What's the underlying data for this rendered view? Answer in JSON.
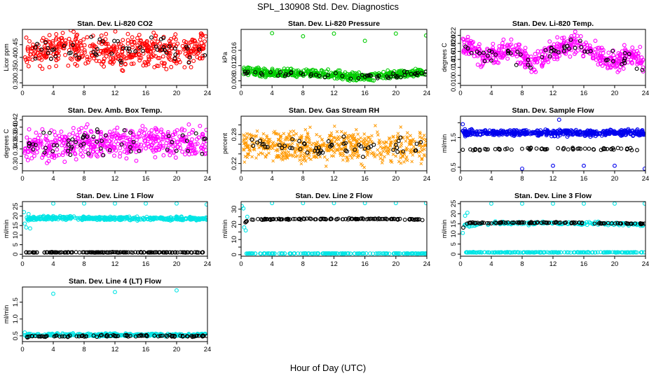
{
  "figure": {
    "title": "SPL_130908  Std. Dev. Diagnostics",
    "xlabel": "Hour of Day (UTC)"
  },
  "chart_data": [
    {
      "type": "scatter",
      "title": "Stan. Dev. Li-820 CO2",
      "ylabel": "Licor ppm",
      "xlim": [
        0,
        24
      ],
      "ylim": [
        0.29,
        0.51
      ],
      "xticks": [
        0,
        4,
        8,
        12,
        16,
        20,
        24
      ],
      "yticks": [
        0.3,
        0.35,
        0.4,
        0.45
      ],
      "ytick_labels": [
        "0.30",
        "0.35",
        "0.40",
        "0.45"
      ],
      "series": [
        {
          "color": "#ff0000",
          "marker": "open-circle",
          "density": 480,
          "x": [
            0.3,
            2.0,
            4.1,
            6.0,
            8.0,
            10.0,
            12.0,
            14.0,
            16.0,
            18.0,
            20.0,
            22.0,
            23.9
          ],
          "y": [
            0.43,
            0.42,
            0.43,
            0.44,
            0.42,
            0.43,
            0.43,
            0.42,
            0.43,
            0.43,
            0.42,
            0.43,
            0.44
          ],
          "spread": 0.045
        },
        {
          "color": "#000000",
          "marker": "open-circle",
          "density": 55,
          "x": [
            0.3,
            4.0,
            8.0,
            12.0,
            16.0,
            20.0,
            23.9
          ],
          "y": [
            0.43,
            0.43,
            0.43,
            0.43,
            0.43,
            0.43,
            0.43
          ],
          "spread": 0.035
        }
      ]
    },
    {
      "type": "scatter",
      "title": "Stan. Dev. Li-820 Pressure",
      "ylabel": "kPa",
      "xlim": [
        0,
        24
      ],
      "ylim": [
        0.0068,
        0.0215
      ],
      "xticks": [
        0,
        4,
        8,
        12,
        16,
        20,
        24
      ],
      "yticks": [
        0.008,
        0.012,
        0.016
      ],
      "ytick_labels": [
        "0.008",
        "0.012",
        "0.016"
      ],
      "series": [
        {
          "color": "#00cc00",
          "marker": "open-circle",
          "density": 480,
          "x": [
            0.3,
            2.0,
            4.0,
            6.0,
            8.0,
            10.0,
            12.0,
            14.0,
            16.0,
            18.0,
            20.0,
            22.0,
            23.9
          ],
          "y": [
            0.0107,
            0.0103,
            0.01,
            0.01,
            0.01,
            0.0098,
            0.0095,
            0.009,
            0.009,
            0.0093,
            0.0097,
            0.01,
            0.0102
          ],
          "spread": 0.0008
        },
        {
          "color": "#000000",
          "marker": "open-circle",
          "density": 55,
          "x": [
            0.3,
            4.0,
            8.0,
            12.0,
            16.0,
            20.0,
            23.9
          ],
          "y": [
            0.0102,
            0.0099,
            0.0099,
            0.0094,
            0.009,
            0.0096,
            0.0101
          ],
          "spread": 0.0006
        },
        {
          "color": "#00cc00",
          "marker": "open-circle",
          "density": 0,
          "points": [
            [
              4.0,
              0.0205
            ],
            [
              8.0,
              0.0197
            ],
            [
              12.0,
              0.0204
            ],
            [
              16.0,
              0.0185
            ],
            [
              20.0,
              0.0204
            ],
            [
              23.9,
              0.0199
            ]
          ]
        }
      ]
    },
    {
      "type": "scatter",
      "title": "Stan. Dev. Li-820 Temp.",
      "ylabel": "degrees C",
      "xlim": [
        0,
        24
      ],
      "ylim": [
        0.0095,
        0.0235
      ],
      "xticks": [
        0,
        4,
        8,
        12,
        16,
        20,
        24
      ],
      "yticks": [
        0.01,
        0.012,
        0.014,
        0.016,
        0.018,
        0.02,
        0.022
      ],
      "ytick_labels": [
        "0.010",
        "",
        "0.014",
        "0.016",
        "0.018",
        "0.020",
        "0.022"
      ],
      "series": [
        {
          "color": "#ff00ff",
          "marker": "open-circle",
          "density": 480,
          "x": [
            0.3,
            1.5,
            3.0,
            4.5,
            6.0,
            7.5,
            9.0,
            10.5,
            12.0,
            13.5,
            15.0,
            16.5,
            18.0,
            19.5,
            21.0,
            22.5,
            23.9
          ],
          "y": [
            0.0195,
            0.0188,
            0.0165,
            0.017,
            0.0185,
            0.018,
            0.0145,
            0.0155,
            0.018,
            0.0195,
            0.0198,
            0.0185,
            0.017,
            0.016,
            0.0165,
            0.017,
            0.015
          ],
          "spread": 0.002
        },
        {
          "color": "#000000",
          "marker": "open-circle",
          "density": 55,
          "x": [
            0.3,
            3.0,
            6.0,
            9.0,
            12.0,
            15.0,
            18.0,
            21.0,
            23.9
          ],
          "y": [
            0.019,
            0.0165,
            0.018,
            0.015,
            0.018,
            0.0195,
            0.017,
            0.0165,
            0.0145
          ],
          "spread": 0.0015
        }
      ]
    },
    {
      "type": "scatter",
      "title": "Stan. Dev. Amb. Box Temp.",
      "ylabel": "degrees C",
      "xlim": [
        0,
        24
      ],
      "ylim": [
        0.28,
        0.43
      ],
      "xticks": [
        0,
        4,
        8,
        12,
        16,
        20,
        24
      ],
      "yticks": [
        0.3,
        0.32,
        0.34,
        0.36,
        0.38,
        0.4,
        0.42
      ],
      "ytick_labels": [
        "0.30",
        "",
        "0.34",
        "0.36",
        "0.38",
        "0.40",
        "0.42"
      ],
      "series": [
        {
          "color": "#ff00ff",
          "marker": "open-circle",
          "density": 480,
          "x": [
            0.3,
            4.0,
            8.0,
            12.0,
            16.0,
            20.0,
            23.9
          ],
          "y": [
            0.345,
            0.35,
            0.355,
            0.36,
            0.36,
            0.36,
            0.355
          ],
          "spread": 0.03
        },
        {
          "color": "#000000",
          "marker": "open-circle",
          "density": 55,
          "x": [
            0.3,
            4.0,
            8.0,
            12.0,
            16.0,
            20.0,
            23.9
          ],
          "y": [
            0.345,
            0.355,
            0.355,
            0.36,
            0.365,
            0.365,
            0.355
          ],
          "spread": 0.025
        }
      ]
    },
    {
      "type": "scatter",
      "title": "Stan. Dev. Gas Stream RH",
      "ylabel": "percent",
      "xlim": [
        0,
        24
      ],
      "ylim": [
        0.205,
        0.318
      ],
      "xticks": [
        0,
        4,
        8,
        12,
        16,
        20,
        24
      ],
      "yticks": [
        0.22,
        0.24,
        0.26,
        0.28,
        0.3
      ],
      "ytick_labels": [
        "0.22",
        "",
        "",
        "0.28",
        ""
      ],
      "series": [
        {
          "color": "#ff9900",
          "marker": "cross",
          "density": 600,
          "x": [
            0.3,
            4.0,
            8.0,
            12.0,
            16.0,
            20.0,
            23.9
          ],
          "y": [
            0.255,
            0.255,
            0.255,
            0.255,
            0.255,
            0.255,
            0.255
          ],
          "spread": 0.025
        },
        {
          "color": "#000000",
          "marker": "open-circle",
          "density": 55,
          "x": [
            0.3,
            4.0,
            8.0,
            12.0,
            16.0,
            20.0,
            23.9
          ],
          "y": [
            0.255,
            0.258,
            0.256,
            0.252,
            0.255,
            0.258,
            0.255
          ],
          "spread": 0.015
        }
      ]
    },
    {
      "type": "scatter",
      "title": "Stan. Dev. Sample Flow",
      "ylabel": "ml/min",
      "xlim": [
        0,
        24
      ],
      "ylim": [
        0.38,
        2.22
      ],
      "xticks": [
        0,
        4,
        8,
        12,
        16,
        20,
        24
      ],
      "yticks": [
        0.5,
        1.0,
        1.5,
        2.0
      ],
      "ytick_labels": [
        "0.5",
        "",
        "1.5",
        ""
      ],
      "series": [
        {
          "color": "#0000ee",
          "marker": "open-circle",
          "density": 480,
          "x": [
            0.3,
            4.0,
            8.0,
            12.0,
            16.0,
            20.0,
            23.9
          ],
          "y": [
            1.66,
            1.66,
            1.66,
            1.66,
            1.66,
            1.66,
            1.66
          ],
          "spread": 0.07
        },
        {
          "color": "#000000",
          "marker": "open-circle",
          "density": 60,
          "x": [
            0.3,
            4.0,
            8.0,
            12.0,
            16.0,
            20.0,
            23.9
          ],
          "y": [
            1.1,
            1.1,
            1.12,
            1.12,
            1.12,
            1.12,
            1.1
          ],
          "spread": 0.03
        },
        {
          "color": "#0000ee",
          "marker": "open-circle",
          "density": 0,
          "points": [
            [
              0.3,
              1.95
            ],
            [
              8.0,
              0.45
            ],
            [
              12.0,
              0.55
            ],
            [
              12.8,
              2.1
            ],
            [
              16.0,
              0.55
            ],
            [
              20.0,
              0.55
            ],
            [
              23.9,
              0.45
            ]
          ]
        }
      ]
    },
    {
      "type": "scatter",
      "title": "Stan. Dev. Line 1 Flow",
      "ylabel": "ml/min",
      "xlim": [
        0,
        24
      ],
      "ylim": [
        -1,
        27.5
      ],
      "xticks": [
        0,
        4,
        8,
        12,
        16,
        20,
        24
      ],
      "yticks": [
        0,
        5,
        10,
        15,
        20,
        25
      ],
      "ytick_labels": [
        "0",
        "5",
        "10",
        "15",
        "20",
        "25"
      ],
      "series": [
        {
          "color": "#00e5e5",
          "marker": "open-circle",
          "density": 400,
          "x": [
            0.5,
            4.0,
            8.0,
            12.0,
            16.0,
            20.0,
            23.9
          ],
          "y": [
            18.6,
            19.0,
            18.8,
            18.8,
            18.7,
            18.6,
            18.4
          ],
          "spread": 0.7
        },
        {
          "color": "#000000",
          "marker": "open-circle",
          "density": 160,
          "x": [
            0.3,
            4.0,
            8.0,
            12.0,
            16.0,
            20.0,
            23.9
          ],
          "y": [
            1.0,
            1.0,
            1.0,
            1.0,
            1.0,
            1.0,
            1.0
          ],
          "spread": 0.1
        },
        {
          "color": "#00e5e5",
          "marker": "open-circle",
          "density": 0,
          "points": [
            [
              0.2,
              22.0
            ],
            [
              0.3,
              16.0
            ],
            [
              0.5,
              14.0
            ],
            [
              0.8,
              21.0
            ],
            [
              1.0,
              13.5
            ],
            [
              4.0,
              26.5
            ],
            [
              8.0,
              26.5
            ],
            [
              12.0,
              26.5
            ],
            [
              16.0,
              26.5
            ],
            [
              20.0,
              26.5
            ],
            [
              23.9,
              26.0
            ]
          ]
        }
      ]
    },
    {
      "type": "scatter",
      "title": "Stan. Dev. Line 2 Flow",
      "ylabel": "ml/min",
      "xlim": [
        0,
        24
      ],
      "ylim": [
        -1,
        35
      ],
      "xticks": [
        0,
        4,
        8,
        12,
        16,
        20,
        24
      ],
      "yticks": [
        0,
        5,
        10,
        15,
        20,
        25,
        30
      ],
      "ytick_labels": [
        "0",
        "",
        "10",
        "",
        "20",
        "",
        "30"
      ],
      "series": [
        {
          "color": "#00e5e5",
          "marker": "open-circle",
          "density": 180,
          "x": [
            0.3,
            4.0,
            8.0,
            12.0,
            16.0,
            20.0,
            23.9
          ],
          "y": [
            0.8,
            0.8,
            0.8,
            0.8,
            0.8,
            0.8,
            0.8
          ],
          "spread": 0.1
        },
        {
          "color": "#000000",
          "marker": "open-circle",
          "density": 120,
          "x": [
            0.3,
            1.0,
            4.0,
            8.0,
            12.0,
            16.0,
            20.0,
            23.9
          ],
          "y": [
            21.0,
            23.0,
            23.4,
            23.5,
            23.5,
            23.6,
            23.5,
            23.2
          ],
          "spread": 0.3
        },
        {
          "color": "#00e5e5",
          "marker": "open-circle",
          "density": 0,
          "points": [
            [
              0.1,
              32.0
            ],
            [
              0.3,
              30.5
            ],
            [
              0.4,
              18.0
            ],
            [
              0.6,
              16.0
            ],
            [
              0.8,
              25.0
            ],
            [
              4.0,
              34.0
            ],
            [
              8.0,
              34.0
            ],
            [
              12.0,
              34.0
            ],
            [
              16.0,
              34.0
            ],
            [
              20.0,
              34.0
            ],
            [
              23.9,
              34.0
            ]
          ]
        }
      ]
    },
    {
      "type": "scatter",
      "title": "Stan. Dev. Line 3 Flow",
      "ylabel": "ml/min",
      "xlim": [
        0,
        24
      ],
      "ylim": [
        -1,
        26
      ],
      "xticks": [
        0,
        4,
        8,
        12,
        16,
        20,
        24
      ],
      "yticks": [
        0,
        5,
        10,
        15,
        20,
        25
      ],
      "ytick_labels": [
        "0",
        "5",
        "10",
        "15",
        "20",
        "25"
      ],
      "series": [
        {
          "color": "#00e5e5",
          "marker": "open-circle",
          "density": 180,
          "x": [
            0.3,
            4.0,
            8.0,
            12.0,
            16.0,
            20.0,
            23.9
          ],
          "y": [
            0.9,
            0.9,
            0.9,
            0.9,
            0.9,
            0.9,
            0.9
          ],
          "spread": 0.1
        },
        {
          "color": "#00e5e5",
          "marker": "open-circle",
          "density": 160,
          "x": [
            0.5,
            4.0,
            8.0,
            12.0,
            16.0,
            20.0,
            23.9
          ],
          "y": [
            14.0,
            15.2,
            15.3,
            15.3,
            15.1,
            14.9,
            14.7
          ],
          "spread": 0.6
        },
        {
          "color": "#000000",
          "marker": "open-circle",
          "density": 110,
          "x": [
            0.3,
            1.0,
            4.0,
            8.0,
            12.0,
            16.0,
            20.0,
            23.9
          ],
          "y": [
            13.0,
            15.5,
            15.5,
            15.6,
            15.6,
            15.4,
            15.2,
            15.0
          ],
          "spread": 0.2
        },
        {
          "color": "#00e5e5",
          "marker": "open-circle",
          "density": 0,
          "points": [
            [
              0.3,
              10.5
            ],
            [
              0.6,
              19.0
            ],
            [
              0.9,
              20.5
            ],
            [
              4.0,
              25.0
            ],
            [
              8.0,
              25.0
            ],
            [
              12.0,
              25.0
            ],
            [
              16.0,
              25.0
            ],
            [
              20.0,
              25.0
            ],
            [
              23.9,
              25.0
            ]
          ]
        }
      ]
    },
    {
      "type": "scatter",
      "title": "Stan. Dev. Line 4 (LT) Flow",
      "ylabel": "ml/min",
      "xlim": [
        0,
        24
      ],
      "ylim": [
        0.33,
        1.95
      ],
      "xticks": [
        0,
        4,
        8,
        12,
        16,
        20,
        24
      ],
      "yticks": [
        0.5,
        1.0,
        1.5
      ],
      "ytick_labels": [
        "0.5",
        "1.0",
        "1.5"
      ],
      "series": [
        {
          "color": "#00e5e5",
          "marker": "open-circle",
          "density": 300,
          "x": [
            0.3,
            4.0,
            8.0,
            12.0,
            16.0,
            20.0,
            23.9
          ],
          "y": [
            0.52,
            0.53,
            0.53,
            0.53,
            0.53,
            0.53,
            0.53
          ],
          "spread": 0.03
        },
        {
          "color": "#000000",
          "marker": "open-circle",
          "density": 90,
          "x": [
            0.3,
            4.0,
            8.0,
            12.0,
            16.0,
            20.0,
            23.9
          ],
          "y": [
            0.47,
            0.49,
            0.5,
            0.5,
            0.5,
            0.5,
            0.49
          ],
          "spread": 0.02
        },
        {
          "color": "#00e5e5",
          "marker": "open-circle",
          "density": 0,
          "points": [
            [
              0.3,
              0.6
            ],
            [
              4.0,
              1.75
            ],
            [
              12.0,
              1.8
            ],
            [
              20.0,
              1.85
            ]
          ]
        }
      ]
    }
  ]
}
